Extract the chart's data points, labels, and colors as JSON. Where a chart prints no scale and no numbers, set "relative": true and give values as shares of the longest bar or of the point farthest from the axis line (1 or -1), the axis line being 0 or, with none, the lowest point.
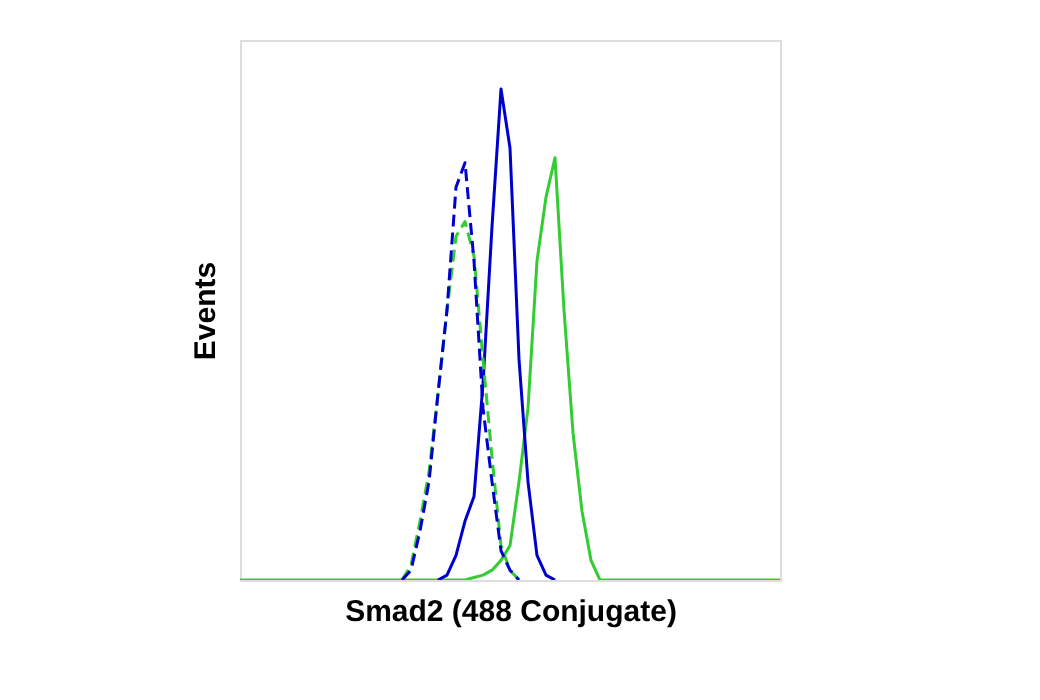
{
  "chart_data": {
    "type": "line",
    "relative": true,
    "xlabel": "Smad2 (488 Conjugate)",
    "ylabel": "Events",
    "grid": false,
    "tick_labels": false,
    "marker": "none",
    "categories": [
      null,
      null,
      null,
      null,
      null,
      null,
      null,
      null,
      null,
      null,
      null,
      null,
      null,
      null,
      null,
      null,
      null,
      null,
      null,
      null,
      null,
      null,
      null,
      null,
      null,
      null,
      null,
      null,
      null,
      null,
      null,
      null,
      null,
      null,
      null,
      null,
      null,
      null,
      null,
      null,
      null,
      null,
      null,
      null,
      null,
      null,
      null,
      null,
      null,
      null,
      null,
      null,
      null,
      null,
      null,
      null,
      null,
      null,
      null,
      null,
      null
    ],
    "series": [
      {
        "color": "#33cc33",
        "line_style": "solid",
        "values": [
          0,
          0,
          0,
          0,
          0,
          0,
          0,
          0,
          0,
          0,
          0,
          0,
          0,
          0,
          0,
          0,
          0,
          0,
          0,
          0,
          0,
          0,
          0,
          0,
          0,
          0,
          0.005,
          0.01,
          0.02,
          0.04,
          0.07,
          0.2,
          0.35,
          0.65,
          0.78,
          0.86,
          0.55,
          0.3,
          0.14,
          0.04,
          0,
          0,
          0,
          0,
          0,
          0,
          0,
          0,
          0,
          0,
          0,
          0,
          0,
          0,
          0,
          0,
          0,
          0,
          0,
          0,
          0
        ]
      },
      {
        "color": "#0000cc",
        "line_style": "solid",
        "values": [
          null,
          null,
          null,
          null,
          null,
          null,
          null,
          null,
          null,
          null,
          null,
          null,
          null,
          null,
          null,
          null,
          null,
          null,
          null,
          null,
          null,
          null,
          0,
          0.01,
          0.05,
          0.12,
          0.17,
          0.4,
          0.72,
          1,
          0.88,
          0.45,
          0.2,
          0.05,
          0.01,
          0,
          null,
          null,
          null,
          null,
          null,
          null,
          null,
          null,
          null,
          null,
          null,
          null,
          null,
          null,
          null,
          null,
          null,
          null,
          null,
          null,
          null,
          null,
          null,
          null,
          null
        ]
      },
      {
        "color": "#33cc33",
        "line_style": "dashed",
        "values": [
          null,
          null,
          null,
          null,
          null,
          null,
          null,
          null,
          null,
          null,
          null,
          null,
          null,
          null,
          null,
          null,
          null,
          null,
          0,
          0.03,
          0.12,
          0.22,
          0.38,
          0.55,
          0.7,
          0.73,
          0.66,
          0.45,
          0.25,
          0.07,
          0.02,
          0,
          null,
          null,
          null,
          null,
          null,
          null,
          null,
          null,
          null,
          null,
          null,
          null,
          null,
          null,
          null,
          null,
          null,
          null,
          null,
          null,
          null,
          null,
          null,
          null,
          null,
          null,
          null,
          null,
          null
        ]
      },
      {
        "color": "#0000cc",
        "line_style": "dashed",
        "values": [
          null,
          null,
          null,
          null,
          null,
          null,
          null,
          null,
          null,
          null,
          null,
          null,
          null,
          null,
          null,
          null,
          null,
          null,
          0,
          0.02,
          0.1,
          0.2,
          0.38,
          0.55,
          0.8,
          0.85,
          0.65,
          0.35,
          0.2,
          0.06,
          0.02,
          0,
          null,
          null,
          null,
          null,
          null,
          null,
          null,
          null,
          null,
          null,
          null,
          null,
          null,
          null,
          null,
          null,
          null,
          null,
          null,
          null,
          null,
          null,
          null,
          null,
          null,
          null,
          null,
          null,
          null
        ]
      }
    ]
  }
}
